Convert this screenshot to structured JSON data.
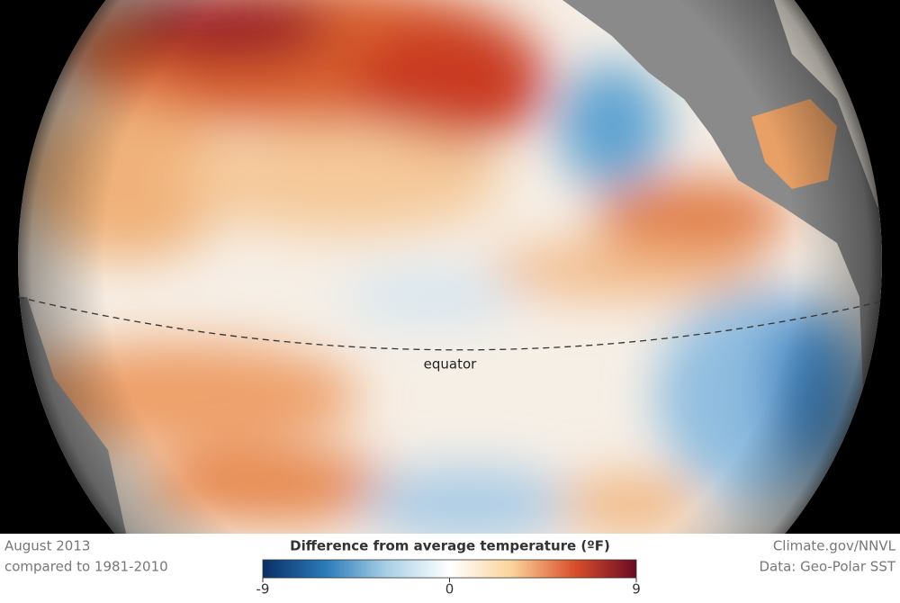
{
  "map": {
    "label": "equator"
  },
  "caption": {
    "date": "August 2013",
    "baseline": "compared to 1981-2010"
  },
  "credit": {
    "source": "Climate.gov/NNVL",
    "data": "Data: Geo-Polar SST"
  },
  "legend": {
    "title": "Difference from average temperature (ºF)",
    "range": [
      -9,
      9
    ],
    "ticks": [
      -9,
      0,
      9
    ],
    "colors": [
      "#0a2f66",
      "#2a7ab8",
      "#a9d0e6",
      "#ffffff",
      "#fbd39b",
      "#d9502c",
      "#6b0a22"
    ]
  }
}
